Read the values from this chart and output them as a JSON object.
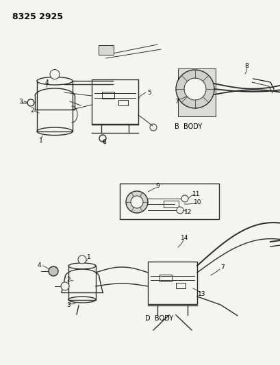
{
  "title": "8325 2925",
  "bg_color": "#f5f5f0",
  "line_color": "#2a2a2a",
  "text_color": "#000000",
  "b_body_label": "B  BODY",
  "d_body_label": "D  BODY"
}
